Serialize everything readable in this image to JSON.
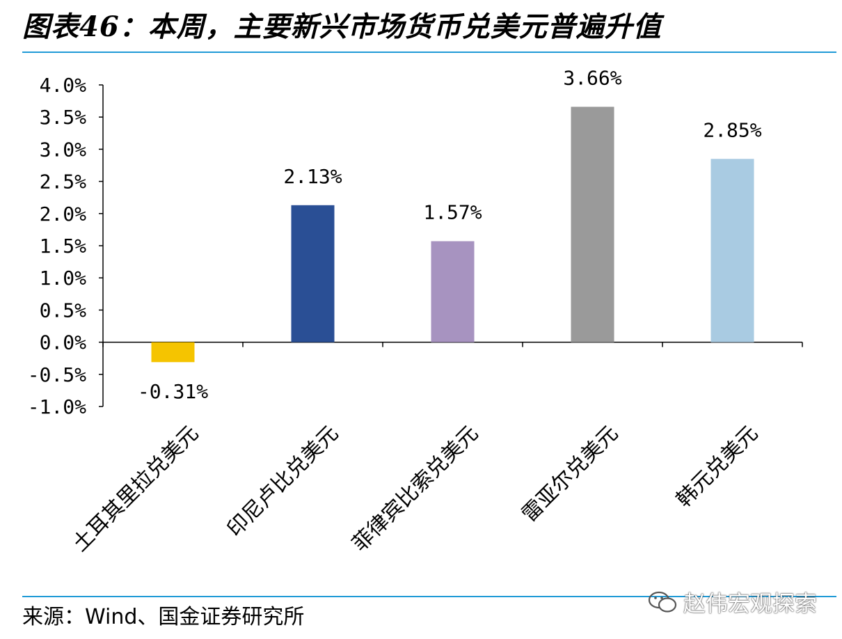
{
  "title": "图表46：本周，主要新兴市场货币兑美元普遍升值",
  "source": "来源：Wind、国金证券研究所",
  "watermark": "赵伟宏观探索",
  "chart_data": {
    "type": "bar",
    "categories": [
      "土耳其里拉兑美元",
      "印尼卢比兑美元",
      "菲律宾比索兑美元",
      "雷亚尔兑美元",
      "韩元兑美元"
    ],
    "values": [
      -0.31,
      2.13,
      1.57,
      3.66,
      2.85
    ],
    "value_labels": [
      "-0.31%",
      "2.13%",
      "1.57%",
      "3.66%",
      "2.85%"
    ],
    "colors": [
      "#f5c400",
      "#2a4f95",
      "#a793c0",
      "#9a9a9a",
      "#a9cbe2"
    ],
    "ylim": [
      -1.0,
      4.0
    ],
    "yticks": [
      -1.0,
      -0.5,
      0.0,
      0.5,
      1.0,
      1.5,
      2.0,
      2.5,
      3.0,
      3.5,
      4.0
    ],
    "ytick_labels": [
      "-1.0%",
      "-0.5%",
      "0.0%",
      "0.5%",
      "1.0%",
      "1.5%",
      "2.0%",
      "2.5%",
      "3.0%",
      "3.5%",
      "4.0%"
    ],
    "xlabel": "",
    "ylabel": "",
    "grid": false,
    "legend": "none"
  }
}
